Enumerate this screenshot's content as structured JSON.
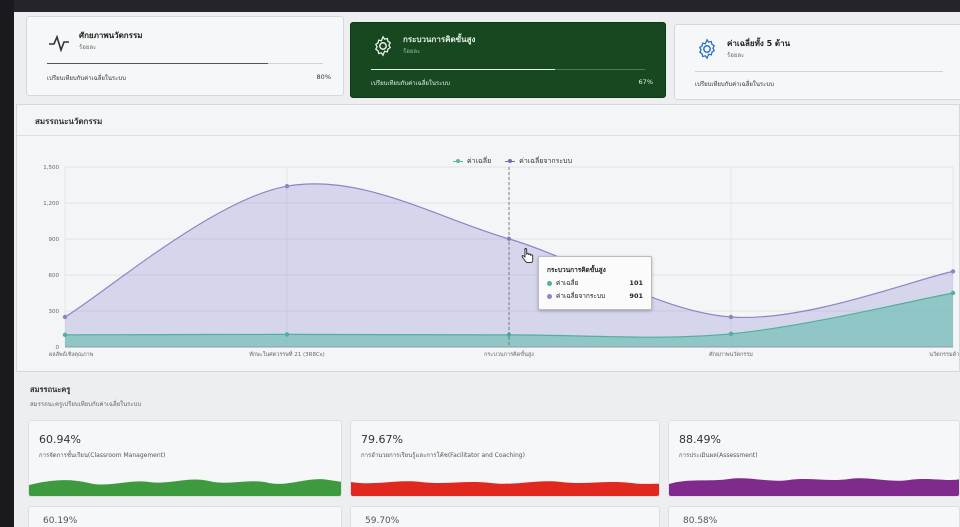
{
  "top_cards": [
    {
      "title": "ศักยภาพนวัตกรรม",
      "sub": "ร้อยละ",
      "compare": "เปรียบเทียบกับค่าเฉลี่ยในระบบ",
      "percent": "80%",
      "progress": 0.8,
      "icon": "activity-icon"
    },
    {
      "title": "กระบวนการคิดขั้นสูง",
      "sub": "ร้อยละ",
      "compare": "เปรียบเทียบกับค่าเฉลี่ยในระบบ",
      "percent": "67%",
      "progress": 0.67,
      "icon": "gear-icon"
    },
    {
      "title": "ค่าเฉลี่ยทั้ง 5 ด้าน",
      "sub": "ร้อยละ",
      "compare": "เปรียบเทียบกับค่าเฉลี่ยในระบบ",
      "percent": "",
      "progress": 0.0,
      "icon": "gear-icon"
    }
  ],
  "panel": {
    "title": "สมรรถนะนวัตกรรม"
  },
  "chart_data": {
    "type": "area",
    "categories": [
      "ผลลัพธ์เชิงคุณภาพ",
      "ทักษะในศตวรรษที่ 21 (3R8Cs)",
      "กระบวนการคิดขั้นสูง",
      "ศักยภาพนวัตกรรม",
      "นวัตกรรมด้าน"
    ],
    "series": [
      {
        "name": "ค่าเฉลี่ย",
        "values": [
          101,
          105,
          101,
          110,
          450
        ],
        "color": "#58b9a7"
      },
      {
        "name": "ค่าเฉลี่ยจากระบบ",
        "values": [
          250,
          1340,
          901,
          250,
          630
        ],
        "color": "#8a86c8"
      }
    ],
    "yticks": [
      "0",
      "300",
      "600",
      "900",
      "1,200",
      "1,500"
    ],
    "ylim": [
      0,
      1500
    ],
    "grid": true,
    "legend": "top-center"
  },
  "tooltip": {
    "title": "กระบวนการคิดขั้นสูง",
    "rows": [
      {
        "label": "ค่าเฉลี่ย",
        "value": "101",
        "color": "#4fb09e"
      },
      {
        "label": "ค่าเฉลี่ยจากระบบ",
        "value": "901",
        "color": "#8e86cc"
      }
    ]
  },
  "teacher_section": {
    "title": "สมรรถนะครู",
    "subtitle": "สมรรถนะครูเปรียบเทียบกับค่าเฉลี่ยในระบบ"
  },
  "teacher_cards": [
    {
      "percent": "60.94%",
      "label": "การจัดการชั้นเรียน(Classroom Management)",
      "color": "#3e9a3e"
    },
    {
      "percent": "79.67%",
      "label": "การอำนวยการเรียนรู้และการโค้ช(Facilitator and Coaching)",
      "color": "#e0281f"
    },
    {
      "percent": "88.49%",
      "label": "การประเมินผล(Assessment)",
      "color": "#7f2a8c"
    }
  ],
  "teacher_cards_row2": [
    "60.19%",
    "59.70%",
    "80.58%"
  ]
}
